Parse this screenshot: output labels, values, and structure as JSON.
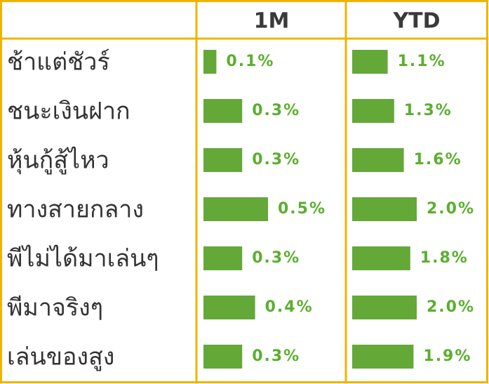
{
  "table": {
    "headers": [
      "1M",
      "YTD"
    ],
    "rows": [
      {
        "name": "ช้าแต่ชัวร์",
        "values": [
          0.1,
          1.1
        ],
        "value_labels": [
          "0.1%",
          "1.1%"
        ]
      },
      {
        "name": "ชนะเงินฝาก",
        "values": [
          0.3,
          1.3
        ],
        "value_labels": [
          "0.3%",
          "1.3%"
        ]
      },
      {
        "name": "หุ้นกู้สู้ไหว",
        "values": [
          0.3,
          1.6
        ],
        "value_labels": [
          "0.3%",
          "1.6%"
        ]
      },
      {
        "name": "ทางสายกลาง",
        "values": [
          0.5,
          2.0
        ],
        "value_labels": [
          "0.5%",
          "2.0%"
        ]
      },
      {
        "name": "พีไม่ได้มาเล่นๆ",
        "values": [
          0.3,
          1.8
        ],
        "value_labels": [
          "0.3%",
          "1.8%"
        ]
      },
      {
        "name": "พีมาจริงๆ",
        "values": [
          0.4,
          2.0
        ],
        "value_labels": [
          "0.4%",
          "2.0%"
        ]
      },
      {
        "name": "เล่นของสูง",
        "values": [
          0.3,
          1.9
        ],
        "value_labels": [
          "0.3%",
          "1.9%"
        ]
      }
    ],
    "bar_color": "#64a838",
    "label_color": "#5aaf2e"
  }
}
